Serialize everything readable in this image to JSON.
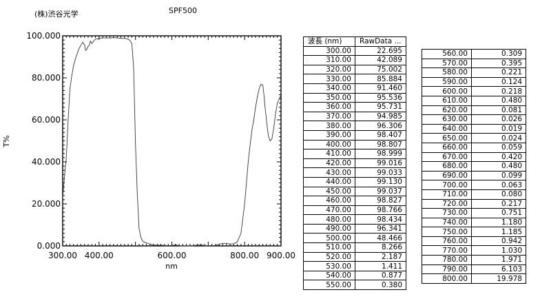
{
  "header": {
    "company": "(株)渋谷光学",
    "sample": "SPF500"
  },
  "table": {
    "col_wavelength": "波長 (nm)",
    "col_rawdata": "RawData ...",
    "rows_left": [
      [
        "300.00",
        "22.695"
      ],
      [
        "310.00",
        "42.089"
      ],
      [
        "320.00",
        "75.002"
      ],
      [
        "330.00",
        "85.884"
      ],
      [
        "340.00",
        "91.460"
      ],
      [
        "350.00",
        "95.536"
      ],
      [
        "360.00",
        "95.731"
      ],
      [
        "370.00",
        "94.985"
      ],
      [
        "380.00",
        "96.306"
      ],
      [
        "390.00",
        "98.407"
      ],
      [
        "400.00",
        "98.807"
      ],
      [
        "410.00",
        "98.999"
      ],
      [
        "420.00",
        "99.016"
      ],
      [
        "430.00",
        "99.033"
      ],
      [
        "440.00",
        "99.130"
      ],
      [
        "450.00",
        "99.037"
      ],
      [
        "460.00",
        "98.827"
      ],
      [
        "470.00",
        "98.766"
      ],
      [
        "480.00",
        "98.434"
      ],
      [
        "490.00",
        "96.341"
      ],
      [
        "500.00",
        "48.466"
      ],
      [
        "510.00",
        "8.266"
      ],
      [
        "520.00",
        "2.187"
      ],
      [
        "530.00",
        "1.411"
      ],
      [
        "540.00",
        "0.877"
      ],
      [
        "550.00",
        "0.380"
      ]
    ],
    "rows_right": [
      [
        "560.00",
        "0.309"
      ],
      [
        "570.00",
        "0.395"
      ],
      [
        "580.00",
        "0.221"
      ],
      [
        "590.00",
        "0.124"
      ],
      [
        "600.00",
        "0.218"
      ],
      [
        "610.00",
        "0.480"
      ],
      [
        "620.00",
        "0.081"
      ],
      [
        "630.00",
        "0.026"
      ],
      [
        "640.00",
        "0.019"
      ],
      [
        "650.00",
        "0.024"
      ],
      [
        "660.00",
        "0.059"
      ],
      [
        "670.00",
        "0.420"
      ],
      [
        "680.00",
        "0.480"
      ],
      [
        "690.00",
        "0.099"
      ],
      [
        "700.00",
        "0.063"
      ],
      [
        "710.00",
        "0.080"
      ],
      [
        "720.00",
        "0.217"
      ],
      [
        "730.00",
        "0.751"
      ],
      [
        "740.00",
        "1.180"
      ],
      [
        "750.00",
        "1.185"
      ],
      [
        "760.00",
        "0.942"
      ],
      [
        "770.00",
        "1.030"
      ],
      [
        "780.00",
        "1.971"
      ],
      [
        "790.00",
        "6.103"
      ],
      [
        "800.00",
        "19.978"
      ]
    ]
  },
  "chart_data": {
    "type": "line",
    "title": "SPF500",
    "xlabel": "nm",
    "ylabel": "T%",
    "xlim": [
      300,
      900
    ],
    "ylim": [
      0,
      100
    ],
    "xticks": [
      300,
      400,
      600,
      800,
      900
    ],
    "xtick_labels": [
      "300.00",
      "400.00",
      "600.00",
      "800.00",
      "900.00"
    ],
    "yticks": [
      0,
      20,
      40,
      60,
      80,
      100
    ],
    "ytick_labels": [
      "0.000",
      "20.000",
      "40.000",
      "60.000",
      "80.000",
      "100.000"
    ],
    "grid": false,
    "series": [
      {
        "x": [
          300,
          305,
          310,
          315,
          320,
          325,
          330,
          335,
          340,
          345,
          350,
          355,
          360,
          363,
          366,
          370,
          373,
          376,
          380,
          385,
          390,
          395,
          400,
          410,
          420,
          430,
          440,
          450,
          460,
          470,
          475,
          480,
          485,
          490,
          495,
          500,
          505,
          510,
          515,
          520,
          525,
          530,
          535,
          540,
          545,
          550,
          560,
          570,
          580,
          590,
          600,
          610,
          620,
          630,
          640,
          650,
          660,
          670,
          680,
          690,
          700,
          710,
          720,
          730,
          740,
          750,
          760,
          770,
          780,
          790,
          800,
          805,
          810,
          815,
          820,
          825,
          830,
          835,
          840,
          845,
          850,
          853,
          856,
          860,
          863,
          866,
          870,
          875,
          880,
          885,
          890,
          895,
          900
        ],
        "y": [
          22.7,
          33,
          42.1,
          60,
          75,
          81,
          85.9,
          89,
          91.5,
          94,
          95.5,
          97,
          95.7,
          93,
          93.5,
          95,
          95.5,
          97.5,
          96.3,
          97.5,
          98.4,
          98.6,
          98.8,
          99,
          99,
          99,
          99.1,
          99,
          98.8,
          98.8,
          98.6,
          98.4,
          97.8,
          96.3,
          85,
          48.5,
          25,
          8.3,
          4,
          2.2,
          1.7,
          1.4,
          1.1,
          0.9,
          0.6,
          0.4,
          0.3,
          0.4,
          0.2,
          0.1,
          0.2,
          0.5,
          0.1,
          0,
          0,
          0,
          0.1,
          0.4,
          0.5,
          0.1,
          0.1,
          0.1,
          0.2,
          0.8,
          1.2,
          1.2,
          0.9,
          1,
          2,
          6.1,
          20,
          30,
          40,
          48,
          55,
          60,
          66,
          71,
          75,
          77,
          76.5,
          72,
          66,
          60,
          55,
          52,
          50,
          51,
          56,
          63,
          68,
          70,
          72
        ]
      }
    ]
  }
}
